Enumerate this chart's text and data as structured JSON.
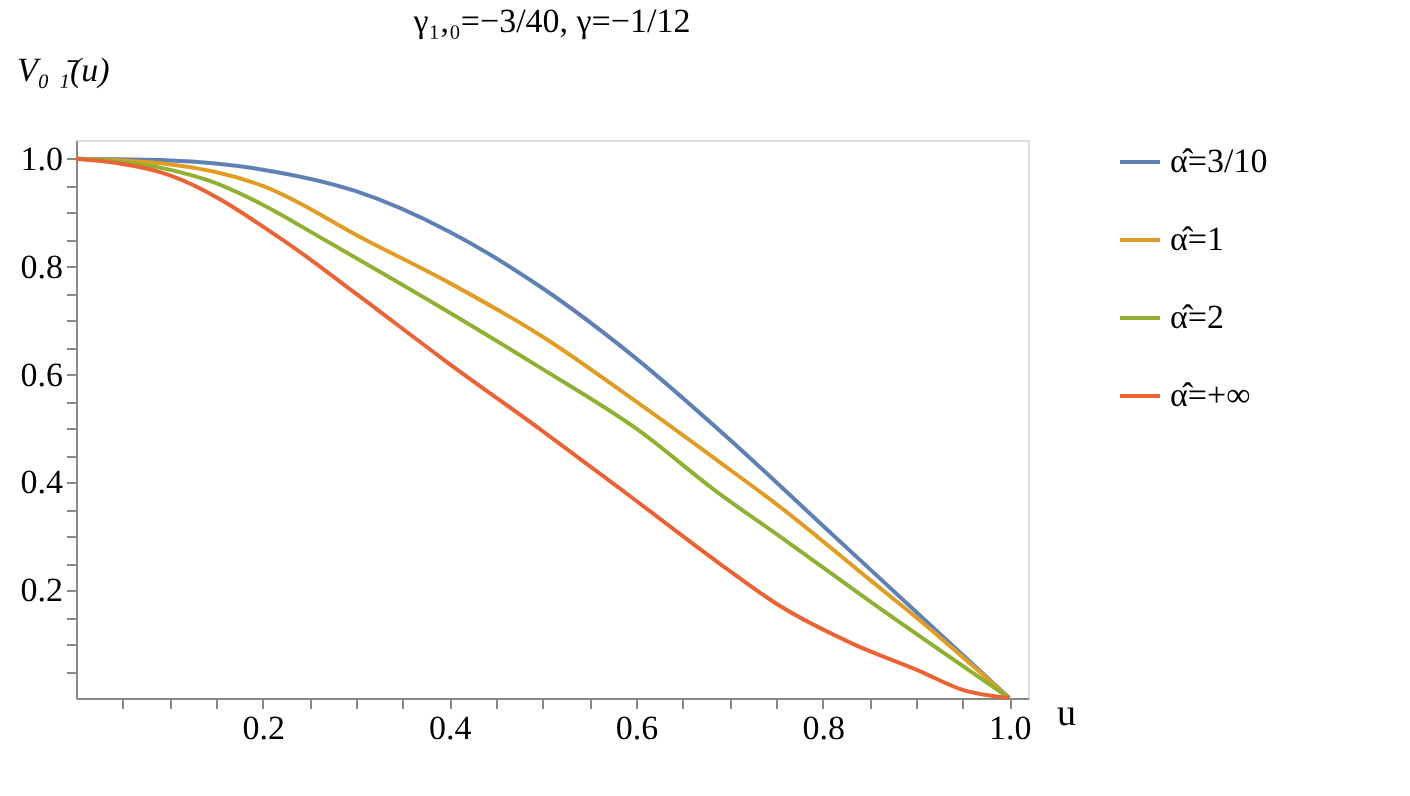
{
  "chart_data": {
    "type": "line",
    "title": "γ₁,₀=−3/40, γ=−1/12",
    "xlabel": "u",
    "ylabel": "V₀ ₁̄(u)",
    "xlim": [
      0,
      1.02
    ],
    "ylim": [
      0,
      1.035
    ],
    "xticks": [
      {
        "value": 0.05,
        "label": null
      },
      {
        "value": 0.1,
        "label": null
      },
      {
        "value": 0.15,
        "label": null
      },
      0.2,
      {
        "value": 0.25,
        "label": null
      },
      {
        "value": 0.3,
        "label": null
      },
      {
        "value": 0.35,
        "label": null
      },
      0.4,
      {
        "value": 0.45,
        "label": null
      },
      {
        "value": 0.5,
        "label": null
      },
      {
        "value": 0.55,
        "label": null
      },
      0.6,
      {
        "value": 0.65,
        "label": null
      },
      {
        "value": 0.7,
        "label": null
      },
      {
        "value": 0.75,
        "label": null
      },
      0.8,
      {
        "value": 0.85,
        "label": null
      },
      {
        "value": 0.9,
        "label": null
      },
      {
        "value": 0.95,
        "label": null
      },
      {
        "value": 1.0,
        "label": "1.0"
      }
    ],
    "yticks": [
      {
        "value": 0.05,
        "label": null
      },
      {
        "value": 0.1,
        "label": null
      },
      {
        "value": 0.15,
        "label": null
      },
      0.2,
      {
        "value": 0.25,
        "label": null
      },
      {
        "value": 0.3,
        "label": null
      },
      {
        "value": 0.35,
        "label": null
      },
      0.4,
      {
        "value": 0.45,
        "label": null
      },
      {
        "value": 0.5,
        "label": null
      },
      {
        "value": 0.55,
        "label": null
      },
      0.6,
      {
        "value": 0.65,
        "label": null
      },
      {
        "value": 0.7,
        "label": null
      },
      {
        "value": 0.75,
        "label": null
      },
      0.8,
      {
        "value": 0.85,
        "label": null
      },
      {
        "value": 0.9,
        "label": null
      },
      {
        "value": 0.95,
        "label": null
      },
      {
        "value": 1.0,
        "label": "1.0"
      }
    ],
    "grid": false,
    "legend": "right",
    "marker": "none",
    "line_style": "solid",
    "series": [
      {
        "name": "α̂=3/10",
        "color": "#5e81b5",
        "x": [
          0,
          0.1,
          0.2,
          0.3,
          0.4,
          0.5,
          0.6,
          0.7,
          0.8,
          0.9,
          1.0
        ],
        "values": [
          1,
          0.997,
          0.98,
          0.94,
          0.865,
          0.76,
          0.63,
          0.48,
          0.32,
          0.16,
          0
        ]
      },
      {
        "name": "α̂=1",
        "color": "#e19c24",
        "x": [
          0,
          0.1,
          0.2,
          0.31,
          0.4,
          0.5,
          0.6,
          0.69,
          0.754,
          0.85,
          0.9,
          1.0
        ],
        "values": [
          1,
          0.99,
          0.95,
          0.85,
          0.77,
          0.67,
          0.55,
          0.437,
          0.355,
          0.22,
          0.15,
          0
        ]
      },
      {
        "name": "α̂=2",
        "color": "#8fb032",
        "x": [
          0,
          0.1,
          0.15,
          0.2,
          0.268,
          0.405,
          0.5,
          0.6,
          0.69,
          0.754,
          0.85,
          1.0
        ],
        "values": [
          1,
          0.98,
          0.955,
          0.915,
          0.848,
          0.71,
          0.61,
          0.5,
          0.378,
          0.3,
          0.18,
          0
        ]
      },
      {
        "name": "α̂=+∞",
        "color": "#eb6235",
        "x": [
          0,
          0.1,
          0.223,
          0.3,
          0.396,
          0.5,
          0.597,
          0.69,
          0.754,
          0.833,
          0.904,
          0.95,
          1.0
        ],
        "values": [
          1,
          0.97,
          0.848,
          0.75,
          0.625,
          0.495,
          0.37,
          0.249,
          0.171,
          0.1,
          0.05,
          0.015,
          0
        ]
      }
    ]
  }
}
